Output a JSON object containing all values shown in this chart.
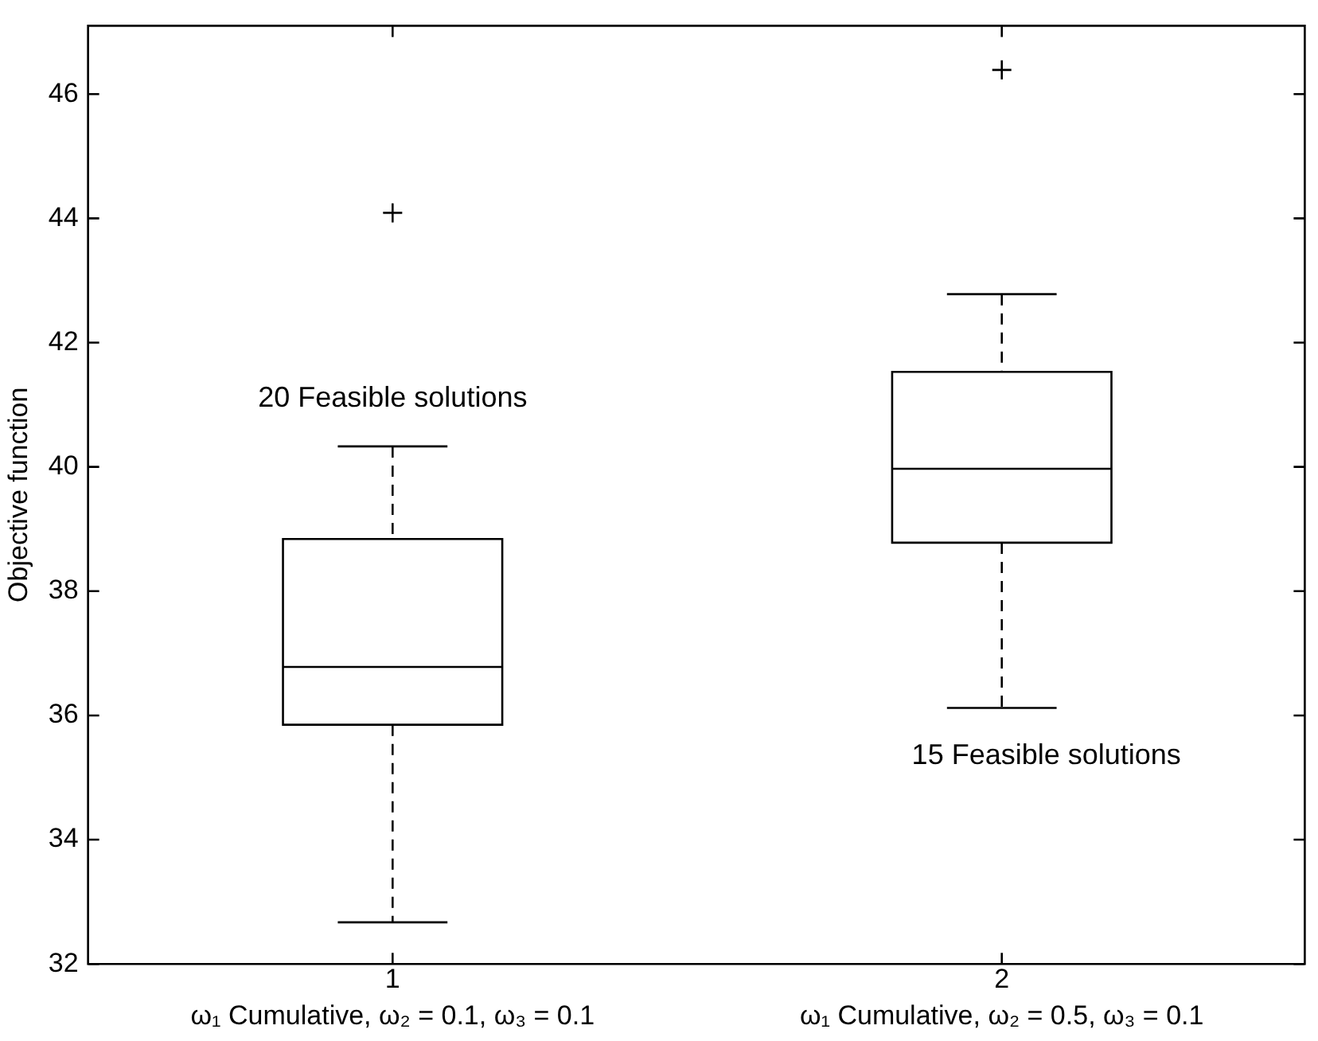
{
  "chart_data": {
    "type": "box",
    "ylabel": "Objective function",
    "categories": [
      "1",
      "2"
    ],
    "color": "#000000",
    "marker": "cross",
    "boxes": [
      {
        "low": 32.67,
        "q1": 35.85,
        "median": 36.78,
        "q3": 38.84,
        "high": 40.33,
        "outliers": [
          44.09
        ]
      },
      {
        "low": 36.12,
        "q1": 38.78,
        "median": 39.97,
        "q3": 41.53,
        "high": 42.78,
        "outliers": [
          46.39
        ]
      }
    ],
    "ylim": [
      32,
      47.1
    ],
    "yticks": [
      32,
      34,
      36,
      38,
      40,
      42,
      44,
      46
    ],
    "grid": false,
    "legend": false,
    "annotations": [
      "20 Feasible solutions",
      "15 Feasible solutions",
      "ω₁ Cumulative, ω₂ = 0.1, ω₃ = 0.1",
      "ω₁ Cumulative, ω₂ = 0.5, ω₃ = 0.1"
    ]
  }
}
